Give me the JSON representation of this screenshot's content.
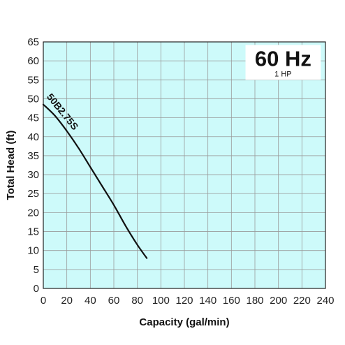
{
  "chart_data": {
    "type": "line",
    "title": "",
    "xlabel": "Capacity (gal/min)",
    "ylabel": "Total Head (ft)",
    "xlim": [
      0,
      240
    ],
    "ylim": [
      0,
      65
    ],
    "xticks": [
      0,
      20,
      40,
      60,
      80,
      100,
      120,
      140,
      160,
      180,
      200,
      220,
      240
    ],
    "yticks": [
      0,
      5,
      10,
      15,
      20,
      25,
      30,
      35,
      40,
      45,
      50,
      55,
      60,
      65
    ],
    "grid": true,
    "legend": "none",
    "colors": {
      "plot_background": "#cdfafa",
      "grid": "#9a9a9a",
      "line": "#111111"
    },
    "badge": {
      "frequency": "60 Hz",
      "power": "1 HP"
    },
    "series": [
      {
        "name": "50B2.75S",
        "x": [
          0,
          10,
          20,
          30,
          40,
          50,
          60,
          70,
          80,
          88
        ],
        "y": [
          48.5,
          45.5,
          41.5,
          37.0,
          32.0,
          27.0,
          22.0,
          16.5,
          11.5,
          8.0
        ]
      }
    ]
  }
}
